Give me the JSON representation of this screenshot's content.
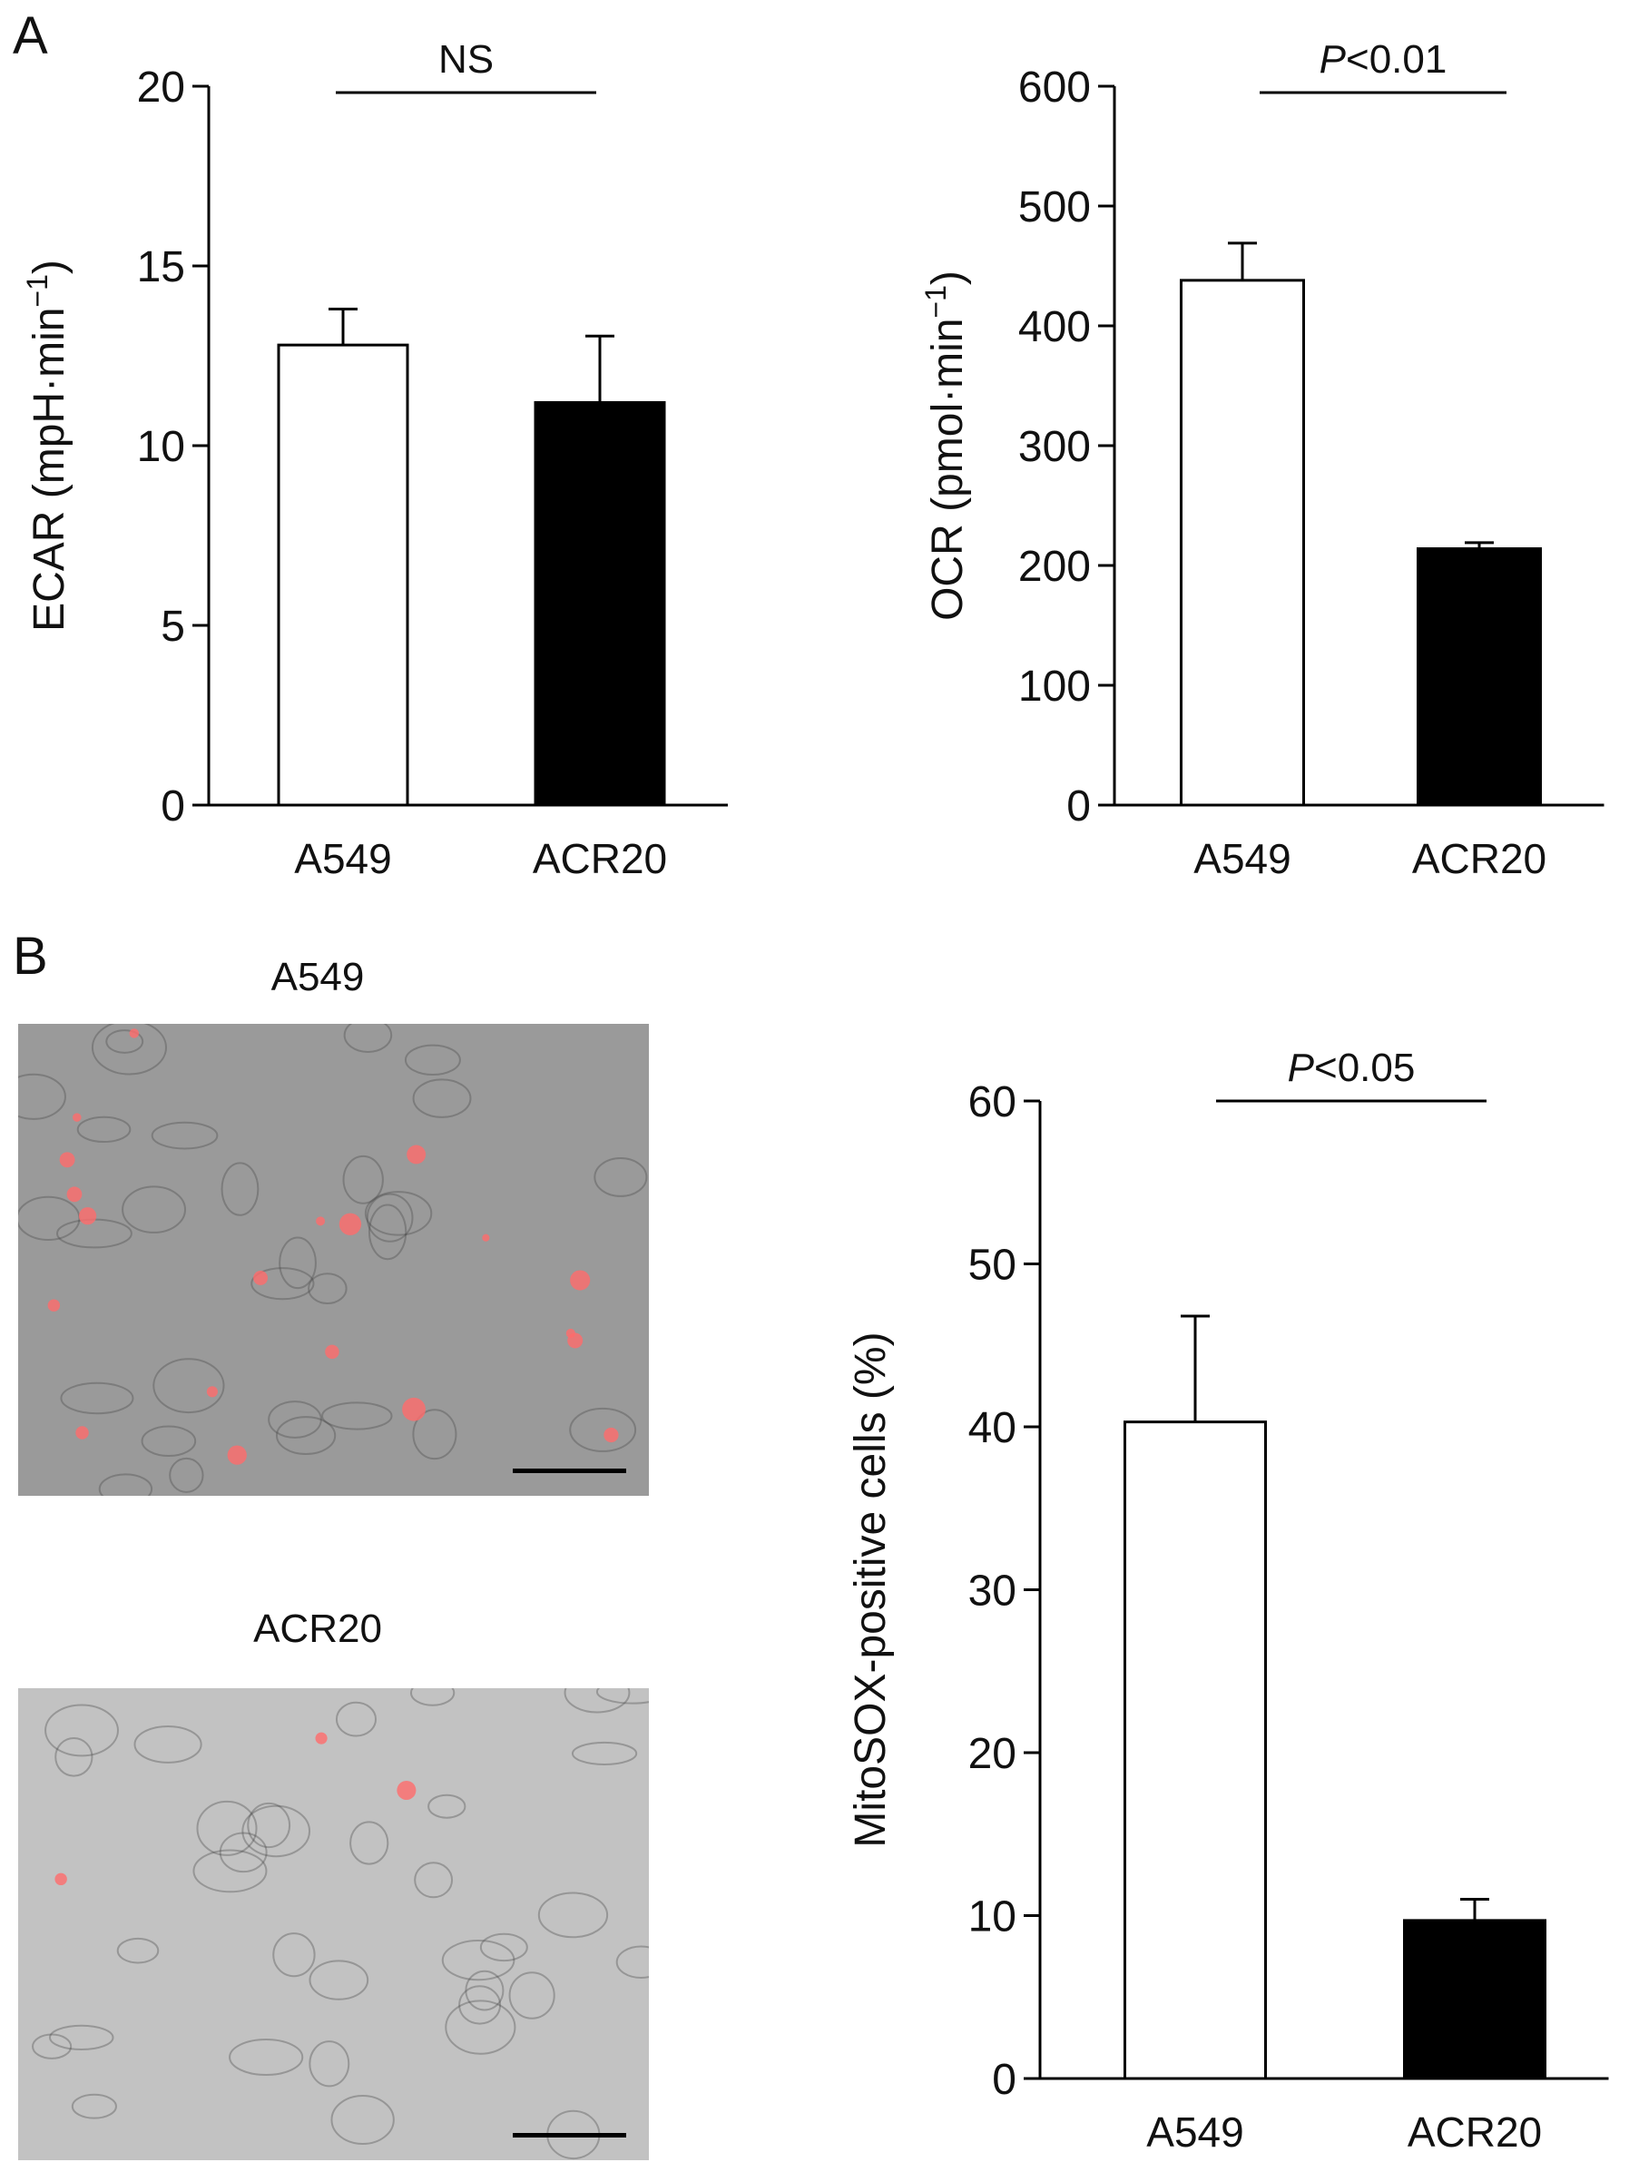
{
  "panels": {
    "a_label": "A",
    "b_label": "B"
  },
  "micrographs": [
    {
      "title": "A549",
      "background": "#9a9a9a",
      "signal_color": "#ff6b6b",
      "scale_bar_color": "#000000"
    },
    {
      "title": "ACR20",
      "background": "#c2c2c2",
      "signal_color": "#ff6b6b",
      "scale_bar_color": "#000000"
    }
  ],
  "colors": {
    "open_bar": "#ffffff",
    "filled_bar": "#000000",
    "axis": "#000000"
  },
  "chart_data": [
    {
      "type": "bar",
      "categories": [
        "A549",
        "ACR20"
      ],
      "values": [
        12.8,
        11.2
      ],
      "errors": [
        1.0,
        1.85
      ],
      "bar_fills": [
        "open",
        "filled"
      ],
      "ylabel": "ECAR (mpH·min",
      "ylabel_sup": "−1",
      "ylabel_close": ")",
      "ylim": [
        0,
        20
      ],
      "yticks": [
        "0",
        "5",
        "10",
        "15",
        "20"
      ],
      "significance": {
        "italic": "",
        "text": "NS"
      }
    },
    {
      "type": "bar",
      "categories": [
        "A549",
        "ACR20"
      ],
      "values": [
        438,
        214
      ],
      "errors": [
        31,
        5
      ],
      "bar_fills": [
        "open",
        "filled"
      ],
      "ylabel": "OCR (pmol·min",
      "ylabel_sup": "−1",
      "ylabel_close": ")",
      "ylim": [
        0,
        600
      ],
      "yticks": [
        "0",
        "100",
        "200",
        "300",
        "400",
        "500",
        "600"
      ],
      "significance": {
        "italic": "P",
        "text": "<0.01"
      }
    },
    {
      "type": "bar",
      "categories": [
        "A549",
        "ACR20"
      ],
      "values": [
        40.3,
        9.7
      ],
      "errors": [
        6.5,
        1.3
      ],
      "bar_fills": [
        "open",
        "filled"
      ],
      "ylabel": "MitoSOX-positive cells (%)",
      "ylabel_sup": "",
      "ylabel_close": "",
      "ylim": [
        0,
        60
      ],
      "yticks": [
        "0",
        "10",
        "20",
        "30",
        "40",
        "50",
        "60"
      ],
      "significance": {
        "italic": "P",
        "text": "<0.05"
      }
    }
  ]
}
